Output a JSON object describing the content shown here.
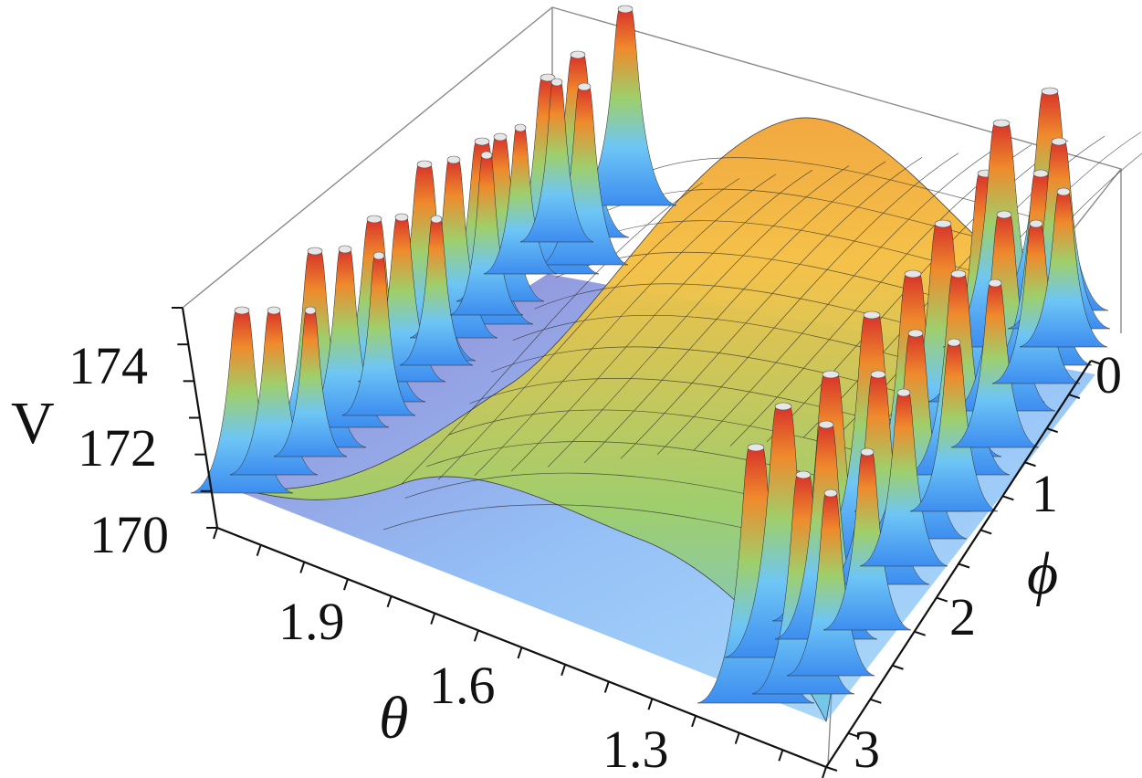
{
  "chart_data": {
    "type": "surface3d",
    "zlabel": "V",
    "xlabel": "θ",
    "ylabel": "ϕ",
    "z_ticks": [
      "170",
      "172",
      "174"
    ],
    "x_ticks": [
      "1.9",
      "1.6",
      "1.3"
    ],
    "y_ticks": [
      "0",
      "1",
      "2",
      "3"
    ],
    "x_range": [
      1.15,
      2.05
    ],
    "y_range": [
      0,
      3.14
    ],
    "z_range": [
      169.5,
      175.5
    ],
    "surface": {
      "description_values": {
        "ridge_center_theta": 1.6,
        "ridge_peak_V": 175.0,
        "baseline_V": 170.0,
        "spike_count_visible": 60
      }
    },
    "colormap": [
      "#3a1fa8",
      "#3d8df0",
      "#6ec6f5",
      "#9fcf6a",
      "#f4c145",
      "#ef8a2c",
      "#d8322a"
    ],
    "bounding_box": true
  }
}
